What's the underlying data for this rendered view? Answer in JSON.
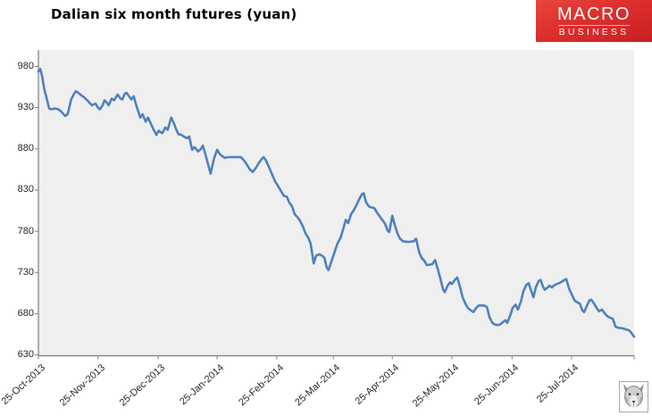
{
  "header": {
    "logo": {
      "line1": "MACRO",
      "line2": "BUSINESS",
      "bg_color": "#d8282b",
      "text_color": "#ffffff"
    }
  },
  "footer": {
    "stamp_icon": "wolf-stamp-icon"
  },
  "chart_data": {
    "type": "line",
    "title": "Dalian six month futures (yuan)",
    "series_name": "Dalian six month futures price",
    "line_color": "#4f81bd",
    "plot_bg": "#efefef",
    "axis_color": "#7f7f7f",
    "label_color": "#262626",
    "grid": "off",
    "legend": "none",
    "ylim": [
      629,
      1000
    ],
    "y_ticks": [
      980,
      930,
      880,
      830,
      780,
      730,
      680,
      630
    ],
    "x_ticks": [
      {
        "label": "25-Oct-2013",
        "f": 0.0
      },
      {
        "label": "25-Nov-2013",
        "f": 0.1
      },
      {
        "label": "25-Dec-2013",
        "f": 0.201
      },
      {
        "label": "25-Jan-2014",
        "f": 0.3
      },
      {
        "label": "25-Feb-2014",
        "f": 0.4
      },
      {
        "label": "25-Mar-2014",
        "f": 0.495
      },
      {
        "label": "25-Apr-2014",
        "f": 0.594
      },
      {
        "label": "25-May-2014",
        "f": 0.694
      },
      {
        "label": "25-Jun-2014",
        "f": 0.795
      },
      {
        "label": "25-Jul-2014",
        "f": 0.895
      }
    ],
    "points": [
      [
        0.0,
        974
      ],
      [
        0.003,
        977
      ],
      [
        0.006,
        969
      ],
      [
        0.01,
        952
      ],
      [
        0.015,
        938
      ],
      [
        0.018,
        929
      ],
      [
        0.022,
        928
      ],
      [
        0.028,
        929
      ],
      [
        0.034,
        928
      ],
      [
        0.04,
        924
      ],
      [
        0.045,
        920
      ],
      [
        0.049,
        922
      ],
      [
        0.055,
        940
      ],
      [
        0.06,
        947
      ],
      [
        0.063,
        950
      ],
      [
        0.067,
        948
      ],
      [
        0.072,
        945
      ],
      [
        0.076,
        943
      ],
      [
        0.082,
        939
      ],
      [
        0.087,
        935
      ],
      [
        0.09,
        933
      ],
      [
        0.096,
        935
      ],
      [
        0.1,
        930
      ],
      [
        0.103,
        928
      ],
      [
        0.108,
        933
      ],
      [
        0.111,
        939
      ],
      [
        0.115,
        936
      ],
      [
        0.118,
        933
      ],
      [
        0.123,
        941
      ],
      [
        0.127,
        939
      ],
      [
        0.133,
        946
      ],
      [
        0.138,
        941
      ],
      [
        0.141,
        940
      ],
      [
        0.145,
        947
      ],
      [
        0.148,
        948
      ],
      [
        0.153,
        943
      ],
      [
        0.156,
        940
      ],
      [
        0.16,
        944
      ],
      [
        0.165,
        931
      ],
      [
        0.171,
        918
      ],
      [
        0.175,
        922
      ],
      [
        0.18,
        913
      ],
      [
        0.184,
        918
      ],
      [
        0.189,
        910
      ],
      [
        0.193,
        904
      ],
      [
        0.198,
        897
      ],
      [
        0.202,
        902
      ],
      [
        0.208,
        899
      ],
      [
        0.213,
        906
      ],
      [
        0.217,
        903
      ],
      [
        0.223,
        918
      ],
      [
        0.228,
        910
      ],
      [
        0.231,
        904
      ],
      [
        0.235,
        898
      ],
      [
        0.24,
        897
      ],
      [
        0.244,
        895
      ],
      [
        0.249,
        893
      ],
      [
        0.253,
        895
      ],
      [
        0.258,
        879
      ],
      [
        0.262,
        882
      ],
      [
        0.268,
        877
      ],
      [
        0.273,
        880
      ],
      [
        0.276,
        884
      ],
      [
        0.28,
        874
      ],
      [
        0.283,
        866
      ],
      [
        0.289,
        850
      ],
      [
        0.295,
        869
      ],
      [
        0.3,
        879
      ],
      [
        0.304,
        874
      ],
      [
        0.307,
        872
      ],
      [
        0.313,
        869
      ],
      [
        0.318,
        870
      ],
      [
        0.331,
        870
      ],
      [
        0.34,
        870
      ],
      [
        0.345,
        866
      ],
      [
        0.349,
        862
      ],
      [
        0.355,
        855
      ],
      [
        0.36,
        852
      ],
      [
        0.366,
        858
      ],
      [
        0.37,
        863
      ],
      [
        0.375,
        868
      ],
      [
        0.378,
        870
      ],
      [
        0.382,
        866
      ],
      [
        0.387,
        858
      ],
      [
        0.393,
        848
      ],
      [
        0.397,
        841
      ],
      [
        0.403,
        834
      ],
      [
        0.408,
        828
      ],
      [
        0.412,
        823
      ],
      [
        0.417,
        822
      ],
      [
        0.421,
        815
      ],
      [
        0.426,
        810
      ],
      [
        0.43,
        801
      ],
      [
        0.435,
        797
      ],
      [
        0.439,
        793
      ],
      [
        0.444,
        786
      ],
      [
        0.448,
        778
      ],
      [
        0.453,
        772
      ],
      [
        0.457,
        765
      ],
      [
        0.462,
        741
      ],
      [
        0.466,
        750
      ],
      [
        0.471,
        752
      ],
      [
        0.475,
        751
      ],
      [
        0.48,
        748
      ],
      [
        0.484,
        736
      ],
      [
        0.487,
        733
      ],
      [
        0.492,
        744
      ],
      [
        0.496,
        752
      ],
      [
        0.502,
        765
      ],
      [
        0.507,
        772
      ],
      [
        0.511,
        781
      ],
      [
        0.516,
        794
      ],
      [
        0.52,
        790
      ],
      [
        0.525,
        801
      ],
      [
        0.529,
        805
      ],
      [
        0.534,
        812
      ],
      [
        0.538,
        818
      ],
      [
        0.543,
        825
      ],
      [
        0.546,
        826
      ],
      [
        0.55,
        815
      ],
      [
        0.555,
        810
      ],
      [
        0.559,
        809
      ],
      [
        0.564,
        808
      ],
      [
        0.568,
        803
      ],
      [
        0.573,
        798
      ],
      [
        0.577,
        794
      ],
      [
        0.582,
        789
      ],
      [
        0.586,
        781
      ],
      [
        0.589,
        779
      ],
      [
        0.594,
        799
      ],
      [
        0.598,
        788
      ],
      [
        0.603,
        777
      ],
      [
        0.607,
        771
      ],
      [
        0.612,
        768
      ],
      [
        0.621,
        767
      ],
      [
        0.63,
        768
      ],
      [
        0.634,
        771
      ],
      [
        0.639,
        755
      ],
      [
        0.643,
        748
      ],
      [
        0.648,
        744
      ],
      [
        0.652,
        739
      ],
      [
        0.661,
        740
      ],
      [
        0.666,
        745
      ],
      [
        0.67,
        735
      ],
      [
        0.675,
        722
      ],
      [
        0.679,
        710
      ],
      [
        0.682,
        706
      ],
      [
        0.687,
        714
      ],
      [
        0.691,
        718
      ],
      [
        0.694,
        716
      ],
      [
        0.699,
        721
      ],
      [
        0.703,
        724
      ],
      [
        0.708,
        712
      ],
      [
        0.712,
        700
      ],
      [
        0.717,
        692
      ],
      [
        0.721,
        687
      ],
      [
        0.726,
        684
      ],
      [
        0.73,
        682
      ],
      [
        0.735,
        687
      ],
      [
        0.739,
        690
      ],
      [
        0.748,
        690
      ],
      [
        0.753,
        688
      ],
      [
        0.757,
        676
      ],
      [
        0.762,
        669
      ],
      [
        0.766,
        667
      ],
      [
        0.771,
        666
      ],
      [
        0.775,
        667
      ],
      [
        0.78,
        670
      ],
      [
        0.784,
        672
      ],
      [
        0.787,
        669
      ],
      [
        0.792,
        678
      ],
      [
        0.796,
        687
      ],
      [
        0.801,
        691
      ],
      [
        0.805,
        685
      ],
      [
        0.81,
        695
      ],
      [
        0.814,
        707
      ],
      [
        0.819,
        715
      ],
      [
        0.823,
        717
      ],
      [
        0.828,
        706
      ],
      [
        0.831,
        700
      ],
      [
        0.835,
        712
      ],
      [
        0.84,
        720
      ],
      [
        0.843,
        721
      ],
      [
        0.847,
        713
      ],
      [
        0.85,
        709
      ],
      [
        0.855,
        712
      ],
      [
        0.858,
        714
      ],
      [
        0.862,
        712
      ],
      [
        0.865,
        714
      ],
      [
        0.87,
        716
      ],
      [
        0.874,
        717
      ],
      [
        0.879,
        719
      ],
      [
        0.883,
        721
      ],
      [
        0.886,
        722
      ],
      [
        0.891,
        710
      ],
      [
        0.895,
        704
      ],
      [
        0.9,
        696
      ],
      [
        0.904,
        694
      ],
      [
        0.909,
        692
      ],
      [
        0.913,
        684
      ],
      [
        0.916,
        682
      ],
      [
        0.921,
        690
      ],
      [
        0.925,
        696
      ],
      [
        0.928,
        697
      ],
      [
        0.933,
        692
      ],
      [
        0.937,
        687
      ],
      [
        0.941,
        683
      ],
      [
        0.946,
        685
      ],
      [
        0.95,
        681
      ],
      [
        0.955,
        677
      ],
      [
        0.96,
        675
      ],
      [
        0.964,
        674
      ],
      [
        0.969,
        664
      ],
      [
        0.973,
        663
      ],
      [
        0.982,
        662
      ],
      [
        0.986,
        661
      ],
      [
        0.991,
        660
      ],
      [
        0.994,
        658
      ],
      [
        0.997,
        655
      ],
      [
        1.0,
        652
      ]
    ]
  }
}
